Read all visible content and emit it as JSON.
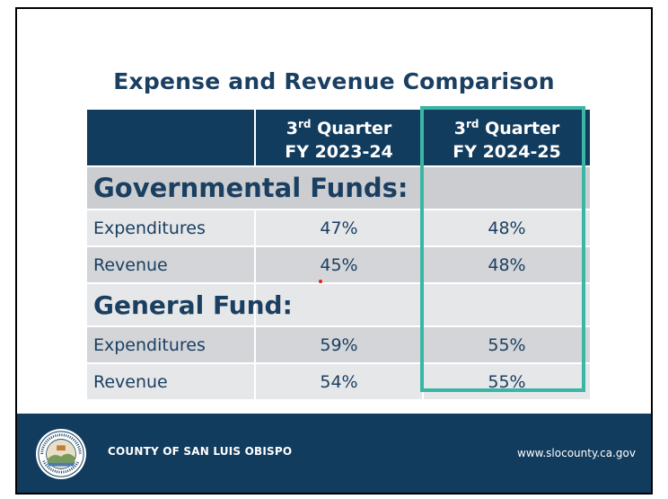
{
  "title": "Expense and Revenue Comparison",
  "header": {
    "col1": {
      "ordinal": "3",
      "suffix": "rd",
      "quarter": "Quarter",
      "fy": "FY 2023-24"
    },
    "col2": {
      "ordinal": "3",
      "suffix": "rd",
      "quarter": "Quarter",
      "fy": "FY 2024-25"
    }
  },
  "sections": [
    {
      "label": "Governmental Funds:",
      "rows": [
        {
          "label": "Expenditures",
          "fy2023": "47%",
          "fy2024": "48%"
        },
        {
          "label": "Revenue",
          "fy2023": "45%",
          "fy2024": "48%"
        }
      ]
    },
    {
      "label": "General Fund:",
      "rows": [
        {
          "label": "Expenditures",
          "fy2023": "59%",
          "fy2024": "55%"
        },
        {
          "label": "Revenue",
          "fy2023": "54%",
          "fy2024": "55%"
        }
      ]
    }
  ],
  "footer": {
    "county": "COUNTY OF SAN LUIS OBISPO",
    "url": "www.slocounty.ca.gov",
    "seal_text": [
      "COUNTY OF SAN LUIS OBISPO",
      "1850",
      "Not For Ourselves Alone"
    ]
  },
  "colors": {
    "navy": "#123c5e",
    "highlight": "#3bb6a5",
    "row_light": "#e6e7e9",
    "row_dark": "#d3d5d8"
  },
  "icons": [
    "county-seal-icon"
  ]
}
